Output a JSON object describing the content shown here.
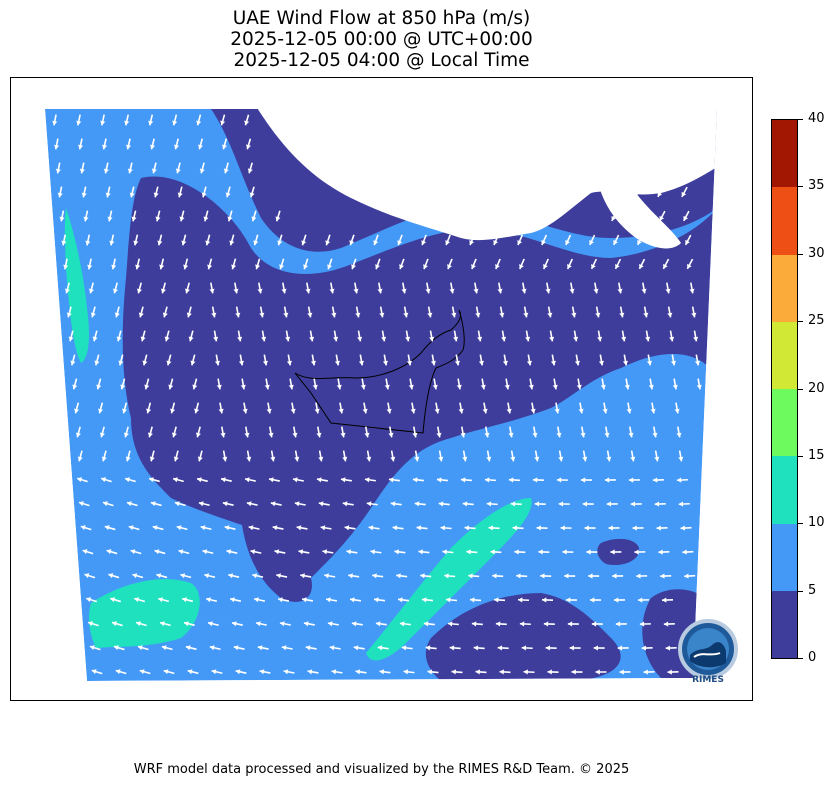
{
  "title": {
    "line1": "UAE Wind Flow at 850 hPa (m/s)",
    "line2": "2025-12-05 00:00 @ UTC+00:00",
    "line3": "2025-12-05 04:00 @ Local Time"
  },
  "colorbar": {
    "ticks": [
      "0",
      "5",
      "10",
      "15",
      "20",
      "25",
      "30",
      "35",
      "40"
    ],
    "bins": [
      {
        "from": 0,
        "to": 5,
        "color": "#3e3d9b"
      },
      {
        "from": 5,
        "to": 10,
        "color": "#4499f7"
      },
      {
        "from": 10,
        "to": 15,
        "color": "#1fe1bd"
      },
      {
        "from": 15,
        "to": 20,
        "color": "#6cfa5e"
      },
      {
        "from": 20,
        "to": 25,
        "color": "#d1e834"
      },
      {
        "from": 25,
        "to": 30,
        "color": "#fbab39"
      },
      {
        "from": 30,
        "to": 35,
        "color": "#ee4f15"
      },
      {
        "from": 35,
        "to": 40,
        "color": "#a11701"
      }
    ]
  },
  "logo": {
    "text": "RIMES",
    "icon": "rimes-logo-icon"
  },
  "footer": "WRF model data processed and visualized by the RIMES R&D Team. © 2025"
}
